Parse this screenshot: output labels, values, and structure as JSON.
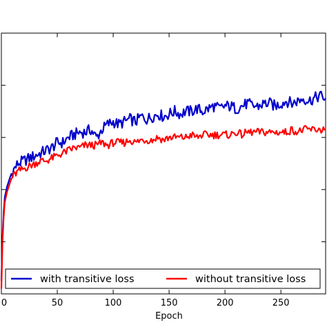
{
  "chart_data": {
    "type": "line",
    "title": "",
    "xlabel": "Epoch",
    "ylabel": "",
    "xlim": [
      0,
      290
    ],
    "ylim": [
      0,
      1
    ],
    "x_ticks": [
      "0",
      "50",
      "100",
      "150",
      "200",
      "250"
    ],
    "grid": false,
    "legend": {
      "placement": "bottom",
      "columns": 2
    },
    "series": [
      {
        "name": "with transitive loss",
        "color": "#0000cc",
        "points": [
          [
            0,
            0.05
          ],
          [
            1,
            0.22
          ],
          [
            2,
            0.31
          ],
          [
            3,
            0.37
          ],
          [
            5,
            0.41
          ],
          [
            8,
            0.45
          ],
          [
            10,
            0.47
          ],
          [
            15,
            0.5
          ],
          [
            20,
            0.51
          ],
          [
            25,
            0.52
          ],
          [
            30,
            0.53
          ],
          [
            35,
            0.54
          ],
          [
            40,
            0.55
          ],
          [
            45,
            0.56
          ],
          [
            50,
            0.58
          ],
          [
            55,
            0.58
          ],
          [
            60,
            0.6
          ],
          [
            65,
            0.61
          ],
          [
            70,
            0.62
          ],
          [
            75,
            0.62
          ],
          [
            80,
            0.63
          ],
          [
            85,
            0.6
          ],
          [
            90,
            0.63
          ],
          [
            95,
            0.65
          ],
          [
            100,
            0.66
          ],
          [
            105,
            0.65
          ],
          [
            110,
            0.66
          ],
          [
            115,
            0.67
          ],
          [
            120,
            0.66
          ],
          [
            125,
            0.68
          ],
          [
            130,
            0.67
          ],
          [
            135,
            0.68
          ],
          [
            140,
            0.69
          ],
          [
            145,
            0.68
          ],
          [
            150,
            0.69
          ],
          [
            155,
            0.7
          ],
          [
            160,
            0.69
          ],
          [
            165,
            0.7
          ],
          [
            170,
            0.7
          ],
          [
            175,
            0.71
          ],
          [
            180,
            0.7
          ],
          [
            185,
            0.71
          ],
          [
            190,
            0.72
          ],
          [
            195,
            0.71
          ],
          [
            200,
            0.72
          ],
          [
            205,
            0.72
          ],
          [
            210,
            0.71
          ],
          [
            215,
            0.72
          ],
          [
            220,
            0.73
          ],
          [
            225,
            0.72
          ],
          [
            230,
            0.72
          ],
          [
            235,
            0.73
          ],
          [
            240,
            0.73
          ],
          [
            245,
            0.72
          ],
          [
            250,
            0.73
          ],
          [
            255,
            0.74
          ],
          [
            260,
            0.73
          ],
          [
            265,
            0.74
          ],
          [
            270,
            0.75
          ],
          [
            275,
            0.74
          ],
          [
            280,
            0.75
          ],
          [
            285,
            0.76
          ],
          [
            290,
            0.75
          ]
        ]
      },
      {
        "name": "without transitive loss",
        "color": "#ff0000",
        "points": [
          [
            0,
            0.02
          ],
          [
            1,
            0.2
          ],
          [
            2,
            0.29
          ],
          [
            3,
            0.35
          ],
          [
            5,
            0.39
          ],
          [
            8,
            0.43
          ],
          [
            10,
            0.45
          ],
          [
            15,
            0.47
          ],
          [
            20,
            0.48
          ],
          [
            25,
            0.49
          ],
          [
            30,
            0.5
          ],
          [
            35,
            0.51
          ],
          [
            40,
            0.51
          ],
          [
            45,
            0.52
          ],
          [
            50,
            0.53
          ],
          [
            55,
            0.54
          ],
          [
            60,
            0.55
          ],
          [
            65,
            0.56
          ],
          [
            70,
            0.56
          ],
          [
            75,
            0.57
          ],
          [
            80,
            0.57
          ],
          [
            85,
            0.57
          ],
          [
            90,
            0.58
          ],
          [
            95,
            0.57
          ],
          [
            100,
            0.58
          ],
          [
            105,
            0.58
          ],
          [
            110,
            0.58
          ],
          [
            115,
            0.59
          ],
          [
            120,
            0.58
          ],
          [
            125,
            0.59
          ],
          [
            130,
            0.59
          ],
          [
            135,
            0.59
          ],
          [
            140,
            0.6
          ],
          [
            145,
            0.59
          ],
          [
            150,
            0.6
          ],
          [
            155,
            0.6
          ],
          [
            160,
            0.6
          ],
          [
            165,
            0.6
          ],
          [
            170,
            0.61
          ],
          [
            175,
            0.6
          ],
          [
            180,
            0.61
          ],
          [
            185,
            0.61
          ],
          [
            190,
            0.61
          ],
          [
            195,
            0.61
          ],
          [
            200,
            0.61
          ],
          [
            205,
            0.61
          ],
          [
            210,
            0.62
          ],
          [
            215,
            0.61
          ],
          [
            220,
            0.62
          ],
          [
            225,
            0.62
          ],
          [
            230,
            0.62
          ],
          [
            235,
            0.62
          ],
          [
            240,
            0.62
          ],
          [
            245,
            0.62
          ],
          [
            250,
            0.62
          ],
          [
            255,
            0.62
          ],
          [
            260,
            0.63
          ],
          [
            265,
            0.62
          ],
          [
            270,
            0.63
          ],
          [
            275,
            0.63
          ],
          [
            280,
            0.63
          ],
          [
            285,
            0.63
          ],
          [
            290,
            0.63
          ]
        ]
      }
    ]
  }
}
